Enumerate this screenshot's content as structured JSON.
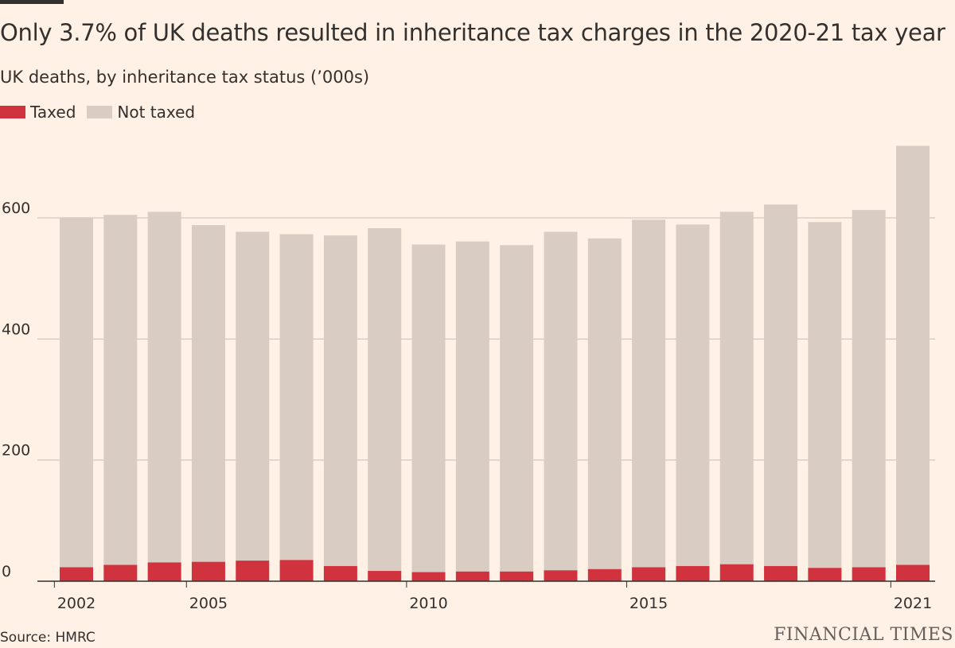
{
  "title": "Only 3.7% of UK deaths resulted in inheritance tax charges in the 2020-21 tax year",
  "subtitle": "UK deaths, by inheritance tax status (’000s)",
  "source": "Source: HMRC",
  "brand": "FINANCIAL TIMES",
  "colors": {
    "background": "#fff1e5",
    "taxed": "#cc0a30",
    "not_taxed": "#d9ccc2",
    "grid": "#c8bdb3",
    "text": "#33302e"
  },
  "legend": [
    {
      "label": "Taxed",
      "color": "#d0323e"
    },
    {
      "label": "Not taxed",
      "color": "#d9ccc2"
    }
  ],
  "chart_data": {
    "type": "bar",
    "stacked": true,
    "x": [
      2002,
      2003,
      2004,
      2005,
      2006,
      2007,
      2008,
      2009,
      2010,
      2011,
      2012,
      2013,
      2014,
      2015,
      2016,
      2017,
      2018,
      2019,
      2020,
      2021
    ],
    "x_tick_labels": [
      "2002",
      "2005",
      "2010",
      "2015",
      "2021"
    ],
    "series": [
      {
        "name": "Taxed",
        "values": [
          23,
          27,
          31,
          32,
          34,
          35,
          25,
          17,
          15,
          16,
          16,
          18,
          20,
          23,
          25,
          28,
          25,
          22,
          23,
          27
        ]
      },
      {
        "name": "Not taxed",
        "values": [
          578,
          578,
          579,
          556,
          543,
          538,
          546,
          566,
          541,
          545,
          539,
          559,
          546,
          574,
          564,
          582,
          597,
          571,
          590,
          692
        ]
      }
    ],
    "y_ticks": [
      0,
      200,
      400,
      600
    ],
    "ylim": [
      0,
      760
    ],
    "grid": true,
    "legend_position": "top-left"
  }
}
